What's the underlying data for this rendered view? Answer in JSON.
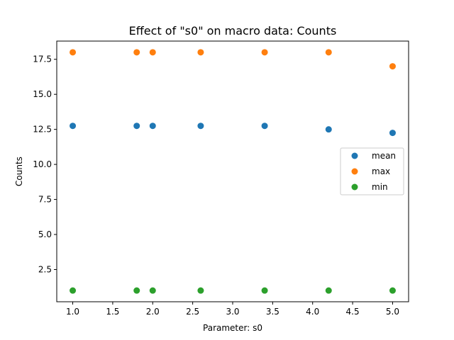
{
  "chart_data": {
    "type": "scatter",
    "title": "Effect of \"s0\" on macro data: Counts",
    "xlabel": "Parameter: s0",
    "ylabel": "Counts",
    "xlim": [
      0.8,
      5.2
    ],
    "ylim": [
      0.2,
      18.8
    ],
    "xticks": [
      1.0,
      1.5,
      2.0,
      2.5,
      3.0,
      3.5,
      4.0,
      4.5,
      5.0
    ],
    "xtick_labels": [
      "1.0",
      "1.5",
      "2.0",
      "2.5",
      "3.0",
      "3.5",
      "4.0",
      "4.5",
      "5.0"
    ],
    "yticks": [
      2.5,
      5.0,
      7.5,
      10.0,
      12.5,
      15.0,
      17.5
    ],
    "ytick_labels": [
      "2.5",
      "5.0",
      "7.5",
      "10.0",
      "12.5",
      "15.0",
      "17.5"
    ],
    "grid": false,
    "legend_position": "center-right",
    "x": [
      1.0,
      1.8,
      2.0,
      2.6,
      3.4,
      4.2,
      5.0
    ],
    "series": [
      {
        "name": "mean",
        "color": "#1f77b4",
        "values": [
          12.75,
          12.75,
          12.75,
          12.75,
          12.75,
          12.5,
          12.25
        ]
      },
      {
        "name": "max",
        "color": "#ff7f0e",
        "values": [
          18,
          18,
          18,
          18,
          18,
          18,
          17
        ]
      },
      {
        "name": "min",
        "color": "#2ca02c",
        "values": [
          1,
          1,
          1,
          1,
          1,
          1,
          1
        ]
      }
    ]
  }
}
